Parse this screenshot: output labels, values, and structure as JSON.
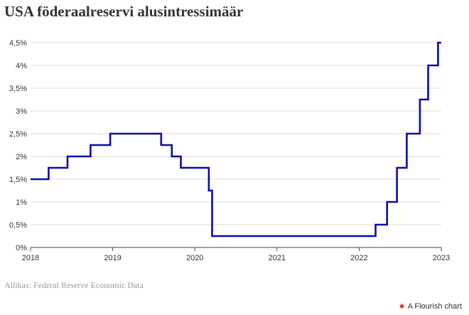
{
  "page": {
    "title": "USA föderaalreservi alusintressimäär",
    "source": "Allikas: Federal Reserve Economic Data",
    "credit": "A Flourish chart",
    "credit_icon": "flourish-logo-icon"
  },
  "chart_data": {
    "type": "line",
    "title": "USA föderaalreservi alusintressimäär",
    "xlabel": "",
    "ylabel": "",
    "xlim": [
      2018.0,
      2023.0
    ],
    "ylim": [
      0,
      4.5
    ],
    "grid": true,
    "step": true,
    "line_color": "#0b0ba8",
    "x_ticks": [
      2018,
      2019,
      2020,
      2021,
      2022,
      2023
    ],
    "x_tick_labels": [
      "2018",
      "2019",
      "2020",
      "2021",
      "2022",
      "2023"
    ],
    "y_ticks": [
      0,
      0.5,
      1,
      1.5,
      2,
      2.5,
      3,
      3.5,
      4,
      4.5
    ],
    "y_tick_labels": [
      "0%",
      "0,5%",
      "1%",
      "1,5%",
      "2%",
      "2,5%",
      "3%",
      "3,5%",
      "4%",
      "4,5%"
    ],
    "series": [
      {
        "points": [
          [
            2018.0,
            1.5
          ],
          [
            2018.22,
            1.75
          ],
          [
            2018.45,
            2.0
          ],
          [
            2018.73,
            2.25
          ],
          [
            2018.97,
            2.5
          ],
          [
            2019.59,
            2.25
          ],
          [
            2019.72,
            2.0
          ],
          [
            2019.83,
            1.75
          ],
          [
            2020.17,
            1.25
          ],
          [
            2020.21,
            0.25
          ],
          [
            2022.2,
            0.5
          ],
          [
            2022.34,
            1.0
          ],
          [
            2022.46,
            1.75
          ],
          [
            2022.58,
            2.5
          ],
          [
            2022.74,
            3.25
          ],
          [
            2022.84,
            4.0
          ],
          [
            2022.96,
            4.5
          ],
          [
            2023.0,
            4.5
          ]
        ]
      }
    ]
  }
}
